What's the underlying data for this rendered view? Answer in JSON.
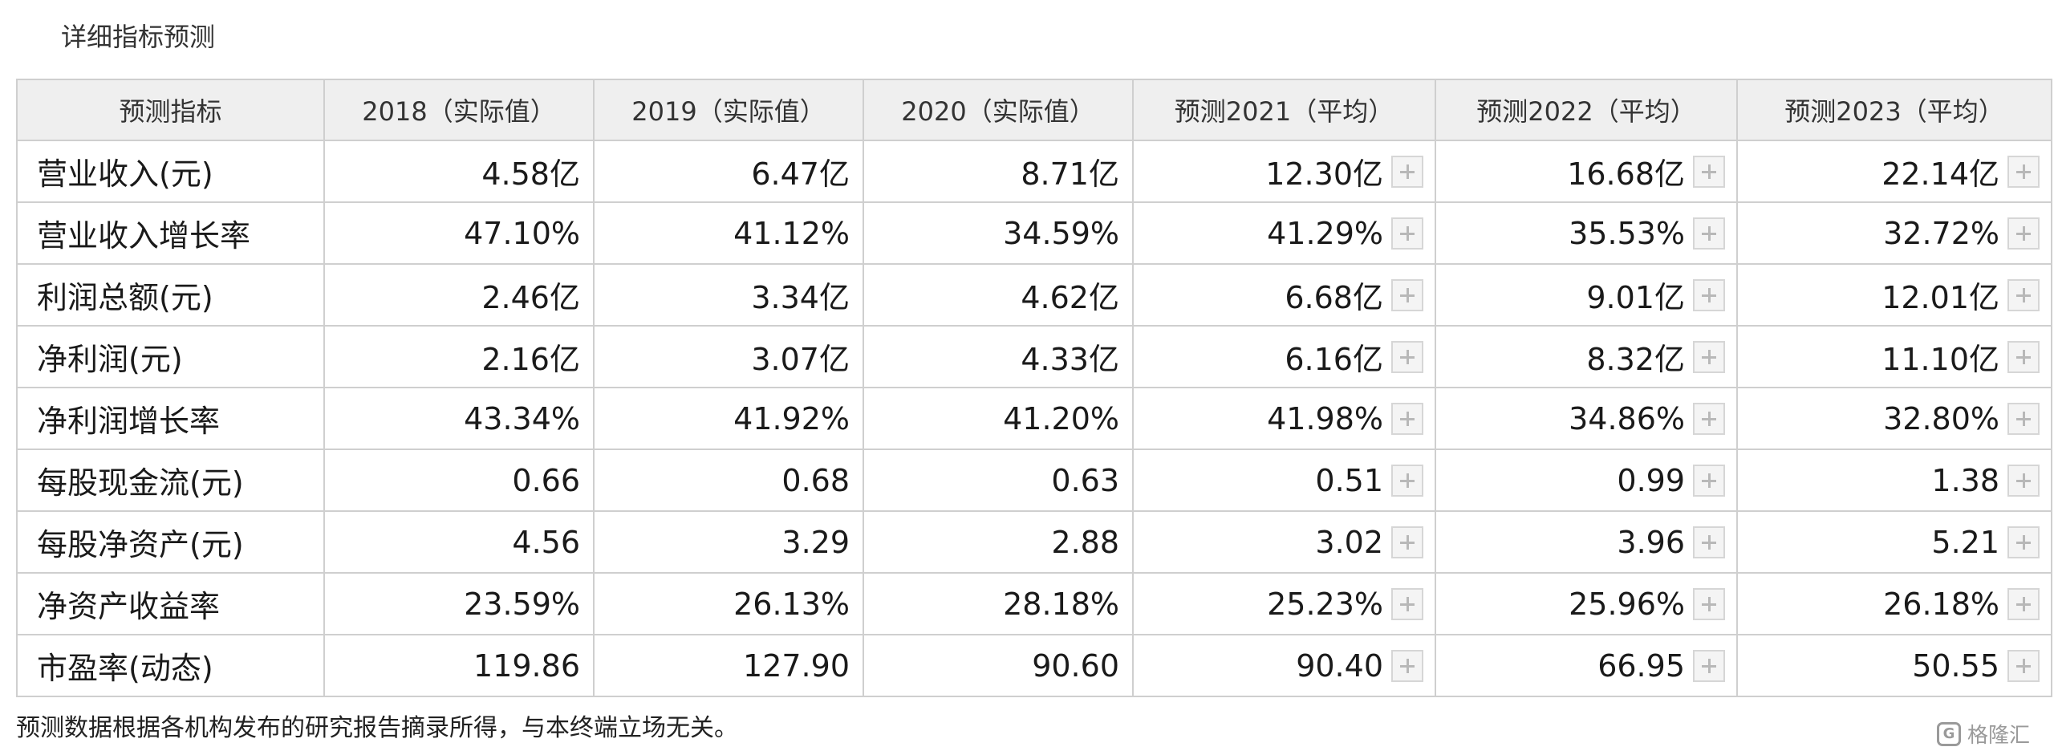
{
  "section": {
    "title": "详细指标预测"
  },
  "table": {
    "headers": [
      "预测指标",
      "2018（实际值）",
      "2019（实际值）",
      "2020（实际值）",
      "预测2021（平均）",
      "预测2022（平均）",
      "预测2023（平均）"
    ],
    "rows": [
      {
        "label": "营业收入(元)",
        "values": [
          "4.58亿",
          "6.47亿",
          "8.71亿",
          "12.30亿",
          "16.68亿",
          "22.14亿"
        ]
      },
      {
        "label": "营业收入增长率",
        "values": [
          "47.10%",
          "41.12%",
          "34.59%",
          "41.29%",
          "35.53%",
          "32.72%"
        ]
      },
      {
        "label": "利润总额(元)",
        "values": [
          "2.46亿",
          "3.34亿",
          "4.62亿",
          "6.68亿",
          "9.01亿",
          "12.01亿"
        ]
      },
      {
        "label": "净利润(元)",
        "values": [
          "2.16亿",
          "3.07亿",
          "4.33亿",
          "6.16亿",
          "8.32亿",
          "11.10亿"
        ]
      },
      {
        "label": "净利润增长率",
        "values": [
          "43.34%",
          "41.92%",
          "41.20%",
          "41.98%",
          "34.86%",
          "32.80%"
        ]
      },
      {
        "label": "每股现金流(元)",
        "values": [
          "0.66",
          "0.68",
          "0.63",
          "0.51",
          "0.99",
          "1.38"
        ]
      },
      {
        "label": "每股净资产(元)",
        "values": [
          "4.56",
          "3.29",
          "2.88",
          "3.02",
          "3.96",
          "5.21"
        ]
      },
      {
        "label": "净资产收益率",
        "values": [
          "23.59%",
          "26.13%",
          "28.18%",
          "25.23%",
          "25.96%",
          "26.18%"
        ]
      },
      {
        "label": "市盈率(动态)",
        "values": [
          "119.86",
          "127.90",
          "90.60",
          "90.40",
          "66.95",
          "50.55"
        ]
      }
    ]
  },
  "footnote": "预测数据根据各机构发布的研究报告摘录所得，与本终端立场无关。",
  "watermark": {
    "logo_glyph": "G",
    "text": "格隆汇"
  },
  "icons": {
    "expand": "plus-icon"
  },
  "colors": {
    "header_bg": "#efefef",
    "border": "#cfcfcf",
    "text": "#1a1a1a"
  }
}
